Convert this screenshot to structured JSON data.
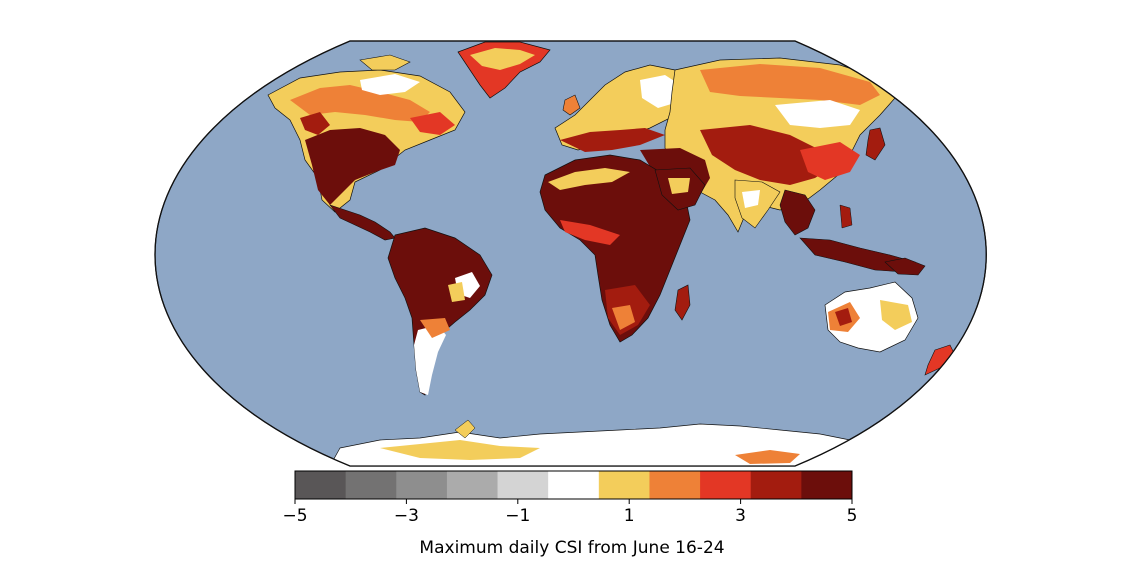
{
  "map": {
    "projection": "robinson",
    "ocean_color": "#8ea7c6",
    "coastline_color": "#111111",
    "border_color": "#222222"
  },
  "colorbar": {
    "label": "Maximum daily CSI from June 16-24",
    "min": -5,
    "max": 5,
    "ticks": [
      {
        "value": -5,
        "label": "−5"
      },
      {
        "value": -3,
        "label": "−3"
      },
      {
        "value": -1,
        "label": "−1"
      },
      {
        "value": 1,
        "label": "1"
      },
      {
        "value": 3,
        "label": "3"
      },
      {
        "value": 5,
        "label": "5"
      }
    ],
    "bins": [
      {
        "from": -5,
        "to": -4,
        "color": "#595657"
      },
      {
        "from": -4,
        "to": -3,
        "color": "#737272"
      },
      {
        "from": -3,
        "to": -2,
        "color": "#8e8e8e"
      },
      {
        "from": -2,
        "to": -1,
        "color": "#ababab"
      },
      {
        "from": -1,
        "to": 0,
        "color": "#d4d4d4"
      },
      {
        "from": 0,
        "to": 1,
        "color": "#ffffff"
      },
      {
        "from": 1,
        "to": 2,
        "color": "#f3cd5b"
      },
      {
        "from": 2,
        "to": 3,
        "color": "#ee8137"
      },
      {
        "from": 3,
        "to": 4,
        "color": "#e33725"
      },
      {
        "from": 4,
        "to": 5,
        "color": "#a31c0f"
      },
      {
        "from": 5,
        "to": 6,
        "color": "#6c0e0b"
      }
    ]
  }
}
